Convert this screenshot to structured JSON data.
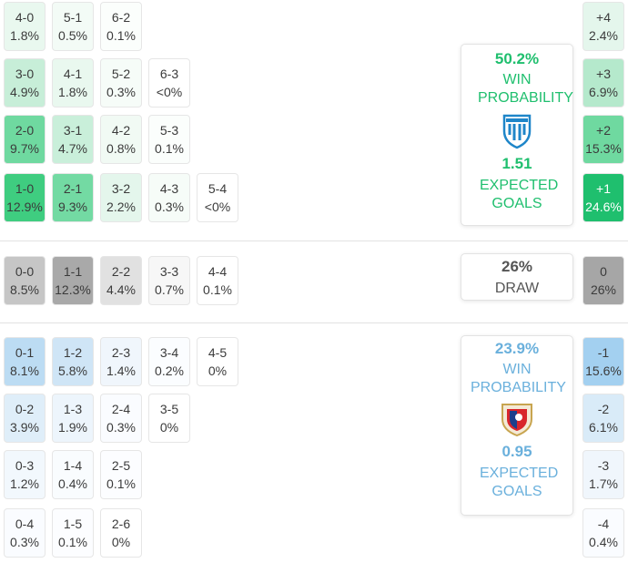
{
  "home": {
    "win_pct": "50.2%",
    "win_label": "WIN PROBABILITY",
    "xg": "1.51",
    "xg_label": "EXPECTED GOALS",
    "color": "#1fbf6e",
    "crest_icon": "home-team-crest-icon"
  },
  "draw": {
    "pct": "26%",
    "label": "DRAW"
  },
  "away": {
    "win_pct": "23.9%",
    "win_label": "WIN PROBABILITY",
    "xg": "0.95",
    "xg_label": "EXPECTED GOALS",
    "color": "#6ab0dc",
    "crest_icon": "away-team-crest-icon"
  },
  "home_rows": [
    [
      {
        "s": "4-0",
        "p": "1.8%",
        "c": "#e9f8ef"
      },
      {
        "s": "5-1",
        "p": "0.5%",
        "c": "#f3fbf6"
      },
      {
        "s": "6-2",
        "p": "0.1%",
        "c": "#fbfefc"
      }
    ],
    [
      {
        "s": "3-0",
        "p": "4.9%",
        "c": "#c7eed8"
      },
      {
        "s": "4-1",
        "p": "1.8%",
        "c": "#e9f8ef"
      },
      {
        "s": "5-2",
        "p": "0.3%",
        "c": "#f6fcf8"
      },
      {
        "s": "6-3",
        "p": "<0%",
        "c": "#ffffff"
      }
    ],
    [
      {
        "s": "2-0",
        "p": "9.7%",
        "c": "#6fd9a0"
      },
      {
        "s": "3-1",
        "p": "4.7%",
        "c": "#c9efda"
      },
      {
        "s": "4-2",
        "p": "0.8%",
        "c": "#f1faf4"
      },
      {
        "s": "5-3",
        "p": "0.1%",
        "c": "#fbfefc"
      }
    ],
    [
      {
        "s": "1-0",
        "p": "12.9%",
        "c": "#3fcd80"
      },
      {
        "s": "2-1",
        "p": "9.3%",
        "c": "#73daa3"
      },
      {
        "s": "3-2",
        "p": "2.2%",
        "c": "#e4f6ec"
      },
      {
        "s": "4-3",
        "p": "0.3%",
        "c": "#f6fcf8"
      },
      {
        "s": "5-4",
        "p": "<0%",
        "c": "#ffffff"
      }
    ]
  ],
  "draw_row": [
    {
      "s": "0-0",
      "p": "8.5%",
      "c": "#c6c6c6"
    },
    {
      "s": "1-1",
      "p": "12.3%",
      "c": "#a9a9a9"
    },
    {
      "s": "2-2",
      "p": "4.4%",
      "c": "#e1e1e1"
    },
    {
      "s": "3-3",
      "p": "0.7%",
      "c": "#f7f7f7"
    },
    {
      "s": "4-4",
      "p": "0.1%",
      "c": "#ffffff"
    }
  ],
  "away_rows": [
    [
      {
        "s": "0-1",
        "p": "8.1%",
        "c": "#bcdcf3"
      },
      {
        "s": "1-2",
        "p": "5.8%",
        "c": "#cfe5f6"
      },
      {
        "s": "2-3",
        "p": "1.4%",
        "c": "#f0f6fc"
      },
      {
        "s": "3-4",
        "p": "0.2%",
        "c": "#fbfdff"
      },
      {
        "s": "4-5",
        "p": "0%",
        "c": "#ffffff"
      }
    ],
    [
      {
        "s": "0-2",
        "p": "3.9%",
        "c": "#dfeef9"
      },
      {
        "s": "1-3",
        "p": "1.9%",
        "c": "#edf5fc"
      },
      {
        "s": "2-4",
        "p": "0.3%",
        "c": "#fafcff"
      },
      {
        "s": "3-5",
        "p": "0%",
        "c": "#ffffff"
      }
    ],
    [
      {
        "s": "0-3",
        "p": "1.2%",
        "c": "#f2f8fd"
      },
      {
        "s": "1-4",
        "p": "0.4%",
        "c": "#f9fcfe"
      },
      {
        "s": "2-5",
        "p": "0.1%",
        "c": "#fcfdff"
      }
    ],
    [
      {
        "s": "0-4",
        "p": "0.3%",
        "c": "#fafcff"
      },
      {
        "s": "1-5",
        "p": "0.1%",
        "c": "#fcfdff"
      },
      {
        "s": "2-6",
        "p": "0%",
        "c": "#ffffff"
      }
    ]
  ],
  "margins": [
    {
      "s": "+4",
      "p": "2.4%",
      "c": "#e4f6ec"
    },
    {
      "s": "+3",
      "p": "6.9%",
      "c": "#b5e9cc"
    },
    {
      "s": "+2",
      "p": "15.3%",
      "c": "#6fd9a0"
    },
    {
      "s": "+1",
      "p": "24.6%",
      "c": "#1fbf6e",
      "t": "#ffffff"
    },
    {
      "s": "0",
      "p": "26%",
      "c": "#a6a6a6"
    },
    {
      "s": "-1",
      "p": "15.6%",
      "c": "#a3d0f0"
    },
    {
      "s": "-2",
      "p": "6.1%",
      "c": "#d9ebf8"
    },
    {
      "s": "-3",
      "p": "1.7%",
      "c": "#f0f6fc"
    },
    {
      "s": "-4",
      "p": "0.4%",
      "c": "#fafcff"
    }
  ]
}
